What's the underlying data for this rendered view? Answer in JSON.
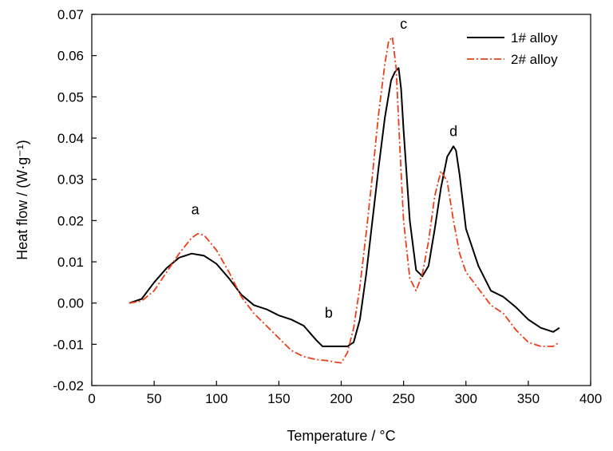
{
  "chart_data": {
    "type": "line",
    "xlabel": "Temperature / ",
    "xlabel_unit": "°C",
    "ylabel": "Heat flow / ",
    "ylabel_unit": "(W·g⁻¹)",
    "xlim": [
      0,
      400
    ],
    "ylim": [
      -0.02,
      0.07
    ],
    "xticks": [
      0,
      50,
      100,
      150,
      200,
      250,
      300,
      350,
      400
    ],
    "yticks": [
      -0.02,
      -0.01,
      0.0,
      0.01,
      0.02,
      0.03,
      0.04,
      0.05,
      0.06,
      0.07
    ],
    "ytick_labels": [
      "-0.02",
      "-0.01",
      "0.00",
      "0.01",
      "0.02",
      "0.03",
      "0.04",
      "0.05",
      "0.06",
      "0.07"
    ],
    "grid": false,
    "legend_position": "top-right",
    "series": [
      {
        "name": "1# alloy",
        "color": "#000000",
        "style": "solid",
        "x": [
          30,
          40,
          50,
          60,
          70,
          80,
          90,
          100,
          110,
          120,
          130,
          140,
          150,
          160,
          170,
          180,
          185,
          190,
          200,
          205,
          210,
          215,
          220,
          225,
          230,
          235,
          240,
          243,
          246,
          248,
          250,
          255,
          260,
          265,
          270,
          275,
          280,
          285,
          290,
          292,
          295,
          300,
          310,
          320,
          330,
          340,
          350,
          360,
          370,
          375
        ],
        "y": [
          0.0,
          0.001,
          0.005,
          0.0085,
          0.011,
          0.012,
          0.0115,
          0.0095,
          0.006,
          0.002,
          -0.0005,
          -0.0015,
          -0.003,
          -0.004,
          -0.0055,
          -0.009,
          -0.0105,
          -0.0105,
          -0.0105,
          -0.0105,
          -0.0095,
          -0.004,
          0.007,
          0.02,
          0.033,
          0.045,
          0.054,
          0.056,
          0.057,
          0.052,
          0.042,
          0.02,
          0.008,
          0.0065,
          0.009,
          0.018,
          0.028,
          0.0355,
          0.038,
          0.037,
          0.031,
          0.018,
          0.009,
          0.003,
          0.0015,
          -0.001,
          -0.004,
          -0.006,
          -0.007,
          -0.006
        ]
      },
      {
        "name": "2# alloy",
        "color": "#e8401c",
        "style": "dashdot",
        "x": [
          30,
          40,
          50,
          60,
          70,
          80,
          85,
          90,
          100,
          110,
          120,
          130,
          140,
          150,
          160,
          170,
          180,
          190,
          195,
          200,
          205,
          210,
          215,
          220,
          225,
          230,
          235,
          238,
          241,
          244,
          247,
          250,
          255,
          260,
          265,
          270,
          275,
          280,
          285,
          290,
          295,
          300,
          310,
          320,
          330,
          340,
          350,
          360,
          370,
          375
        ],
        "y": [
          0.0,
          0.0005,
          0.003,
          0.0075,
          0.012,
          0.0158,
          0.0168,
          0.0165,
          0.0128,
          0.0075,
          0.0015,
          -0.0025,
          -0.0055,
          -0.0085,
          -0.0115,
          -0.013,
          -0.0137,
          -0.014,
          -0.0143,
          -0.0145,
          -0.012,
          -0.006,
          0.004,
          0.017,
          0.031,
          0.046,
          0.058,
          0.0635,
          0.0645,
          0.057,
          0.038,
          0.02,
          0.006,
          0.003,
          0.007,
          0.015,
          0.026,
          0.032,
          0.0295,
          0.02,
          0.012,
          0.0075,
          0.0035,
          -0.0005,
          -0.0025,
          -0.0065,
          -0.0095,
          -0.0105,
          -0.0105,
          -0.0095
        ]
      }
    ],
    "annotations": [
      {
        "text": "a",
        "x": 83,
        "y": 0.0215
      },
      {
        "text": "b",
        "x": 190,
        "y": -0.0035
      },
      {
        "text": "c",
        "x": 250,
        "y": 0.0665
      },
      {
        "text": "d",
        "x": 290,
        "y": 0.0405
      }
    ]
  }
}
